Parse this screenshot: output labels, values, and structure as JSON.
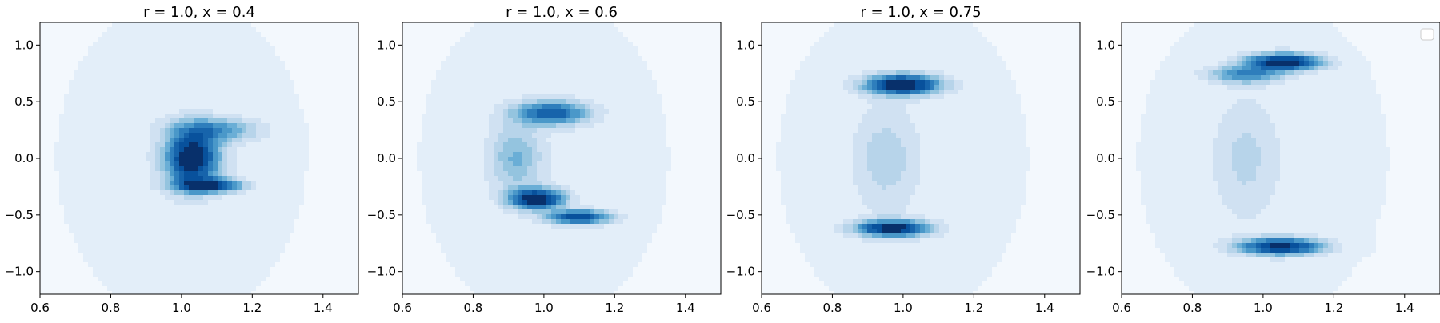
{
  "chart_data": [
    {
      "type": "contour",
      "title": "r = 1.0, x = 0.4",
      "xlim": [
        0.6,
        1.5
      ],
      "ylim": [
        -1.2,
        1.2
      ],
      "xticks": [
        0.6,
        0.8,
        1.0,
        1.2,
        1.4
      ],
      "xtick_labels": [
        "0.6",
        "0.8",
        "1.0",
        "1.2",
        "1.4"
      ],
      "yticks": [
        -1.0,
        -0.5,
        0.0,
        0.5,
        1.0
      ],
      "ytick_labels": [
        "−1.0",
        "−0.5",
        "0.0",
        "0.5",
        "1.0"
      ],
      "colormap": "Blues",
      "density_peaks": [
        {
          "x": 1.03,
          "y": 0.0,
          "sx": 0.05,
          "sy": 0.17,
          "w": 1.0
        },
        {
          "x": 1.08,
          "y": -0.24,
          "sx": 0.06,
          "sy": 0.04,
          "w": 0.85
        },
        {
          "x": 1.1,
          "y": 0.25,
          "sx": 0.08,
          "sy": 0.07,
          "w": 0.4
        }
      ],
      "background_level": 0.1,
      "legend": false
    },
    {
      "type": "contour",
      "title": "r = 1.0, x = 0.6",
      "xlim": [
        0.6,
        1.5
      ],
      "ylim": [
        -1.2,
        1.2
      ],
      "xticks": [
        0.6,
        0.8,
        1.0,
        1.2,
        1.4
      ],
      "xtick_labels": [
        "0.6",
        "0.8",
        "1.0",
        "1.2",
        "1.4"
      ],
      "yticks": [
        -1.0,
        -0.5,
        0.0,
        0.5,
        1.0
      ],
      "ytick_labels": [
        "−1.0",
        "−0.5",
        "0.0",
        "0.5",
        "1.0"
      ],
      "colormap": "Blues",
      "density_peaks": [
        {
          "x": 0.98,
          "y": -0.36,
          "sx": 0.05,
          "sy": 0.06,
          "w": 1.0
        },
        {
          "x": 1.1,
          "y": -0.52,
          "sx": 0.06,
          "sy": 0.04,
          "w": 0.8
        },
        {
          "x": 1.02,
          "y": 0.4,
          "sx": 0.07,
          "sy": 0.07,
          "w": 0.7
        },
        {
          "x": 0.92,
          "y": 0.0,
          "sx": 0.05,
          "sy": 0.2,
          "w": 0.3
        }
      ],
      "background_level": 0.1,
      "legend": false
    },
    {
      "type": "contour",
      "title": "r = 1.0, x = 0.75",
      "xlim": [
        0.6,
        1.5
      ],
      "ylim": [
        -1.2,
        1.2
      ],
      "xticks": [
        0.6,
        0.8,
        1.0,
        1.2,
        1.4
      ],
      "xtick_labels": [
        "0.6",
        "0.8",
        "1.0",
        "1.2",
        "1.4"
      ],
      "yticks": [
        -1.0,
        -0.5,
        0.0,
        0.5,
        1.0
      ],
      "ytick_labels": [
        "−1.0",
        "−0.5",
        "0.0",
        "0.5",
        "1.0"
      ],
      "colormap": "Blues",
      "density_peaks": [
        {
          "x": 1.0,
          "y": 0.65,
          "sx": 0.07,
          "sy": 0.06,
          "w": 1.0
        },
        {
          "x": 0.97,
          "y": -0.62,
          "sx": 0.07,
          "sy": 0.05,
          "w": 0.95
        },
        {
          "x": 0.95,
          "y": 0.0,
          "sx": 0.06,
          "sy": 0.3,
          "w": 0.18
        }
      ],
      "background_level": 0.1,
      "legend": false
    },
    {
      "type": "contour",
      "title": "",
      "xlim": [
        0.6,
        1.5
      ],
      "ylim": [
        -1.2,
        1.2
      ],
      "xticks": [
        0.6,
        0.8,
        1.0,
        1.2,
        1.4
      ],
      "xtick_labels": [
        "0.6",
        "0.8",
        "1.0",
        "1.2",
        "1.4"
      ],
      "yticks": [
        -1.0,
        -0.5,
        0.0,
        0.5,
        1.0
      ],
      "ytick_labels": [
        "−1.0",
        "−0.5",
        "0.0",
        "0.5",
        "1.0"
      ],
      "colormap": "Blues",
      "density_peaks": [
        {
          "x": 1.06,
          "y": 0.85,
          "sx": 0.07,
          "sy": 0.05,
          "w": 1.0
        },
        {
          "x": 0.95,
          "y": 0.74,
          "sx": 0.07,
          "sy": 0.05,
          "w": 0.5
        },
        {
          "x": 1.05,
          "y": -0.78,
          "sx": 0.08,
          "sy": 0.05,
          "w": 0.9
        },
        {
          "x": 0.95,
          "y": 0.0,
          "sx": 0.06,
          "sy": 0.35,
          "w": 0.15
        }
      ],
      "background_level": 0.1,
      "legend": true,
      "legend_placement": "top-right"
    }
  ]
}
